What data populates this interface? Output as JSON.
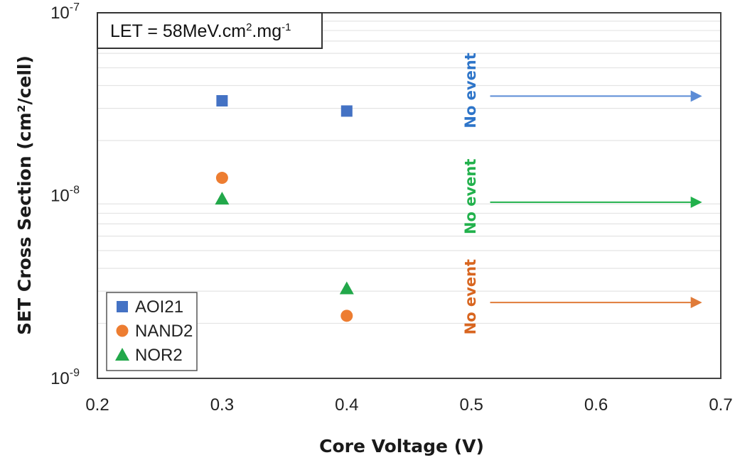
{
  "chart_data": {
    "type": "scatter",
    "x_axis": {
      "label": "Core Voltage (V)",
      "range": [
        0.2,
        0.7
      ],
      "ticks": [
        "0.2",
        "0.3",
        "0.4",
        "0.5",
        "0.6",
        "0.7"
      ]
    },
    "y_axis": {
      "label": "SET Cross Section (cm²/cell)",
      "scale": "log",
      "range": [
        1e-09,
        1e-07
      ],
      "ticks": [
        {
          "base": "10",
          "exp": "-9",
          "value": 1e-09
        },
        {
          "base": "10",
          "exp": "-8",
          "value": 1e-08
        },
        {
          "base": "10",
          "exp": "-7",
          "value": 1e-07
        }
      ]
    },
    "grid": "horizontal minor gridlines",
    "condition": {
      "prefix": "LET = 58MeV.cm",
      "sup1": "2",
      "mid": ".mg",
      "sup2": "-1"
    },
    "series": [
      {
        "name": "AOI21",
        "marker": "square",
        "color": "#4472C4",
        "x": [
          0.3,
          0.4
        ],
        "y": [
          3.3e-08,
          2.9e-08
        ]
      },
      {
        "name": "NAND2",
        "marker": "circle",
        "color": "#ED7D31",
        "x": [
          0.3,
          0.4
        ],
        "y": [
          1.25e-08,
          2.2e-09
        ]
      },
      {
        "name": "NOR2",
        "marker": "triangle",
        "color": "#22A84A",
        "x": [
          0.3,
          0.4
        ],
        "y": [
          9.6e-09,
          3.1e-09
        ]
      }
    ],
    "annotations": [
      {
        "text": "No event",
        "series": "AOI21",
        "color": "#2E75C9",
        "x": 0.5,
        "arrow_y": 3.5e-08,
        "arrow_from_x": 0.515,
        "arrow_to_x": 0.685,
        "arrow_color": "#5B8CD6"
      },
      {
        "text": "No event",
        "series": "NOR2",
        "color": "#22B14C",
        "x": 0.5,
        "arrow_y": 9.2e-09,
        "arrow_from_x": 0.515,
        "arrow_to_x": 0.685,
        "arrow_color": "#22B14C"
      },
      {
        "text": "No event",
        "series": "NAND2",
        "color": "#D8651F",
        "x": 0.5,
        "arrow_y": 2.6e-09,
        "arrow_from_x": 0.515,
        "arrow_to_x": 0.685,
        "arrow_color": "#E07B39"
      }
    ]
  }
}
